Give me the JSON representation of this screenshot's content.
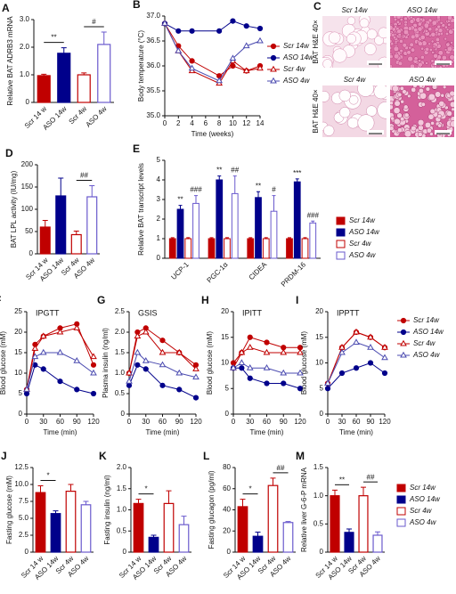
{
  "chart_data": [
    {
      "type": "bar",
      "panel": "A",
      "ylabel": "Relative BAT ADRB3 mRNA",
      "categories": [
        "Scr 14 w",
        "ASO 14w",
        "Scr 4w",
        "ASO 4w"
      ],
      "values": [
        0.97,
        1.78,
        1.0,
        2.1
      ],
      "errors": [
        0.05,
        0.2,
        0.07,
        0.45
      ],
      "colors": [
        "#c00000",
        "#00008b",
        "#c00000",
        "#6a5acd"
      ],
      "filled": [
        true,
        true,
        false,
        false
      ],
      "ylim": [
        0,
        3
      ],
      "yticks": [
        0,
        {
          "value": 1,
          "label": "1.0"
        },
        {
          "value": 2,
          "label": "2.0"
        },
        {
          "value": 3,
          "label": "3.0"
        }
      ],
      "annotations": [
        "**",
        "#"
      ]
    },
    {
      "type": "line",
      "panel": "B",
      "ylabel": "Body temperature (°C)",
      "xlabel": "Time (weeks)",
      "x": [
        0,
        2,
        4,
        8,
        10,
        12,
        14
      ],
      "xlim": [
        0,
        14
      ],
      "xticks": [
        0,
        2,
        4,
        6,
        8,
        10,
        12,
        14
      ],
      "ylim": [
        35,
        37
      ],
      "yticks": [
        {
          "value": 35,
          "label": "35.0"
        },
        35.5,
        {
          "value": 36,
          "label": "36.0"
        },
        36.5,
        {
          "value": 37,
          "label": "37.0"
        }
      ],
      "series": [
        {
          "name": "Scr 14w",
          "color": "#c00000",
          "marker": "circle",
          "filled": true,
          "values": [
            36.85,
            36.4,
            36.1,
            35.8,
            36.0,
            35.9,
            36.0
          ]
        },
        {
          "name": "ASO 14w",
          "color": "#00008b",
          "marker": "circle",
          "filled": true,
          "values": [
            36.85,
            36.7,
            36.7,
            36.7,
            36.9,
            36.8,
            36.75
          ]
        },
        {
          "name": "Scr 4w",
          "color": "#c00000",
          "marker": "triangle",
          "filled": false,
          "values": [
            36.85,
            36.3,
            35.9,
            35.65,
            36.1,
            35.9,
            35.95
          ]
        },
        {
          "name": "ASO 4w",
          "color": "#4b4bb0",
          "marker": "triangle",
          "filled": false,
          "values": [
            36.85,
            36.3,
            35.95,
            35.7,
            36.15,
            36.4,
            36.5
          ]
        }
      ]
    },
    {
      "type": "bar",
      "panel": "D",
      "ylabel": "BAT LPL activity (IU/mg)",
      "categories": [
        "Scr 14 w",
        "ASO 14w",
        "Scr 4w",
        "ASO 4w"
      ],
      "values": [
        60,
        130,
        43,
        128
      ],
      "errors": [
        15,
        40,
        8,
        25
      ],
      "colors": [
        "#c00000",
        "#00008b",
        "#c00000",
        "#6a5acd"
      ],
      "filled": [
        true,
        true,
        false,
        false
      ],
      "ylim": [
        0,
        200
      ],
      "yticks": [
        0,
        50,
        100,
        150,
        200
      ],
      "annotations": [
        null,
        "##"
      ]
    },
    {
      "type": "grouped-bar",
      "panel": "E",
      "ylabel": "Relative BAT transcript levels",
      "categories": [
        "UCP-1",
        "PGC-1α",
        "CIDEA",
        "PRDM-16"
      ],
      "ylim": [
        0,
        5
      ],
      "yticks": [
        0,
        1,
        2,
        3,
        4,
        5
      ],
      "series": [
        {
          "name": "Scr 14w",
          "color": "#c00000",
          "filled": true,
          "values": [
            1,
            1,
            1,
            1
          ],
          "errors": [
            0.05,
            0.05,
            0.05,
            0.05
          ]
        },
        {
          "name": "ASO 14w",
          "color": "#00008b",
          "filled": true,
          "values": [
            2.5,
            4.0,
            3.1,
            3.9
          ],
          "errors": [
            0.2,
            0.2,
            0.3,
            0.15
          ]
        },
        {
          "name": "Scr 4w",
          "color": "#c00000",
          "filled": false,
          "values": [
            1,
            1,
            1,
            1
          ],
          "errors": [
            0.05,
            0.05,
            0.05,
            0.05
          ]
        },
        {
          "name": "ASO 4w",
          "color": "#6a5acd",
          "filled": false,
          "values": [
            2.8,
            3.3,
            2.4,
            1.8
          ],
          "errors": [
            0.4,
            0.9,
            0.8,
            0.1
          ]
        }
      ],
      "annotations": [
        [
          "**",
          "###"
        ],
        [
          "**",
          "##"
        ],
        [
          "**",
          "#"
        ],
        [
          "***",
          "###"
        ]
      ]
    },
    {
      "type": "line",
      "panel": "F",
      "title": "IPGTT",
      "ylabel": "Blood glucose (mM)",
      "xlabel": "Time (min)",
      "x": [
        0,
        15,
        30,
        60,
        90,
        120
      ],
      "xlim": [
        0,
        120
      ],
      "xticks": [
        0,
        30,
        60,
        90,
        120
      ],
      "ylim": [
        0,
        25
      ],
      "yticks": [
        0,
        5,
        10,
        15,
        20,
        25
      ],
      "series": [
        {
          "name": "Scr 14w",
          "color": "#c00000",
          "marker": "circle",
          "filled": true,
          "values": [
            6,
            17,
            19,
            21,
            22,
            12
          ]
        },
        {
          "name": "ASO 14w",
          "color": "#00008b",
          "marker": "circle",
          "filled": true,
          "values": [
            5,
            12,
            11,
            8,
            6,
            5
          ]
        },
        {
          "name": "Scr 4w",
          "color": "#c00000",
          "marker": "triangle",
          "filled": false,
          "values": [
            6,
            16,
            19,
            20,
            21,
            14
          ]
        },
        {
          "name": "ASO 4w",
          "color": "#4b4bb0",
          "marker": "triangle",
          "filled": false,
          "values": [
            6,
            14,
            15,
            15,
            13,
            10
          ]
        }
      ]
    },
    {
      "type": "line",
      "panel": "G",
      "title": "GSIS",
      "ylabel": "Plasma insulin (ng/ml)",
      "xlabel": "Time (min)",
      "x": [
        0,
        15,
        30,
        60,
        90,
        120
      ],
      "xlim": [
        0,
        120
      ],
      "xticks": [
        0,
        30,
        60,
        90,
        120
      ],
      "ylim": [
        0,
        2.5
      ],
      "yticks": [
        0,
        0.5,
        {
          "value": 1,
          "label": "1.0"
        },
        1.5,
        {
          "value": 2,
          "label": "2.0"
        },
        2.5
      ],
      "series": [
        {
          "name": "Scr 14w",
          "color": "#c00000",
          "marker": "circle",
          "filled": true,
          "values": [
            1.0,
            2.0,
            2.1,
            1.8,
            1.5,
            1.2
          ]
        },
        {
          "name": "ASO 14w",
          "color": "#00008b",
          "marker": "circle",
          "filled": true,
          "values": [
            0.7,
            1.2,
            1.1,
            0.7,
            0.6,
            0.4
          ]
        },
        {
          "name": "Scr 4w",
          "color": "#c00000",
          "marker": "triangle",
          "filled": false,
          "values": [
            1.0,
            1.9,
            2.0,
            1.5,
            1.5,
            1.1
          ]
        },
        {
          "name": "ASO 4w",
          "color": "#4b4bb0",
          "marker": "triangle",
          "filled": false,
          "values": [
            0.8,
            1.5,
            1.3,
            1.2,
            1.0,
            0.9
          ]
        }
      ]
    },
    {
      "type": "line",
      "panel": "H",
      "title": "IPITT",
      "ylabel": "Blood glucose (mM)",
      "xlabel": "Time (min)",
      "x": [
        0,
        15,
        30,
        60,
        90,
        120
      ],
      "xlim": [
        0,
        120
      ],
      "xticks": [
        0,
        30,
        60,
        90,
        120
      ],
      "ylim": [
        0,
        20
      ],
      "yticks": [
        0,
        5,
        10,
        15,
        20
      ],
      "series": [
        {
          "name": "Scr 14w",
          "color": "#c00000",
          "marker": "circle",
          "filled": true,
          "values": [
            10,
            12,
            15,
            14,
            13,
            13
          ]
        },
        {
          "name": "ASO 14w",
          "color": "#00008b",
          "marker": "circle",
          "filled": true,
          "values": [
            9,
            9,
            7,
            6,
            6,
            5
          ]
        },
        {
          "name": "Scr 4w",
          "color": "#c00000",
          "marker": "triangle",
          "filled": false,
          "values": [
            9,
            12,
            13,
            12,
            12,
            12
          ]
        },
        {
          "name": "ASO 4w",
          "color": "#4b4bb0",
          "marker": "triangle",
          "filled": false,
          "values": [
            9,
            10,
            9,
            9,
            8,
            8
          ]
        }
      ]
    },
    {
      "type": "line",
      "panel": "I",
      "title": "IPPTT",
      "ylabel": "Blood glucose (mM)",
      "xlabel": "Time (min)",
      "x": [
        0,
        30,
        60,
        90,
        120
      ],
      "xlim": [
        0,
        120
      ],
      "xticks": [
        0,
        30,
        60,
        90,
        120
      ],
      "ylim": [
        0,
        20
      ],
      "yticks": [
        0,
        5,
        10,
        15,
        20
      ],
      "series": [
        {
          "name": "Scr 14w",
          "color": "#c00000",
          "marker": "circle",
          "filled": true,
          "values": [
            6,
            13,
            16,
            15,
            13
          ]
        },
        {
          "name": "ASO 14w",
          "color": "#00008b",
          "marker": "circle",
          "filled": true,
          "values": [
            5,
            8,
            9,
            10,
            8
          ]
        },
        {
          "name": "Scr 4w",
          "color": "#c00000",
          "marker": "triangle",
          "filled": false,
          "values": [
            6,
            13,
            16,
            15,
            13
          ]
        },
        {
          "name": "ASO 4w",
          "color": "#4b4bb0",
          "marker": "triangle",
          "filled": false,
          "values": [
            6,
            12,
            14,
            13,
            11
          ]
        }
      ]
    },
    {
      "type": "bar",
      "panel": "J",
      "ylabel": "Fasting glucose (mM)",
      "categories": [
        "Scr 14 w",
        "ASO 14w",
        "Scr 4w",
        "ASO 4w"
      ],
      "values": [
        8.8,
        5.7,
        9.0,
        7.0
      ],
      "errors": [
        1.0,
        0.4,
        1.0,
        0.5
      ],
      "colors": [
        "#c00000",
        "#00008b",
        "#c00000",
        "#6a5acd"
      ],
      "filled": [
        true,
        true,
        false,
        false
      ],
      "ylim": [
        0,
        12.5
      ],
      "yticks": [
        0,
        2.5,
        {
          "value": 5,
          "label": "5.0"
        },
        7.5,
        {
          "value": 10,
          "label": "10.0"
        },
        12.5
      ],
      "annotations": [
        "*",
        null
      ]
    },
    {
      "type": "bar",
      "panel": "K",
      "ylabel": "Fasting insulin (ng/ml)",
      "categories": [
        "Scr 14 w",
        "ASO 14w",
        "Scr 4w",
        "ASO 4w"
      ],
      "values": [
        1.15,
        0.35,
        1.15,
        0.65
      ],
      "errors": [
        0.1,
        0.05,
        0.3,
        0.2
      ],
      "colors": [
        "#c00000",
        "#00008b",
        "#c00000",
        "#6a5acd"
      ],
      "filled": [
        true,
        true,
        false,
        false
      ],
      "ylim": [
        0,
        2
      ],
      "yticks": [
        0,
        0.5,
        {
          "value": 1,
          "label": "1.0"
        },
        1.5,
        {
          "value": 2,
          "label": "2.0"
        }
      ],
      "annotations": [
        "*",
        null
      ]
    },
    {
      "type": "bar",
      "panel": "L",
      "ylabel": "Fasting glucagon (pg/ml)",
      "categories": [
        "Scr 14 w",
        "ASO 14w",
        "Scr 4w",
        "ASO 4w"
      ],
      "values": [
        43,
        15,
        63,
        28
      ],
      "errors": [
        7,
        4,
        7,
        1
      ],
      "colors": [
        "#c00000",
        "#00008b",
        "#c00000",
        "#6a5acd"
      ],
      "filled": [
        true,
        true,
        false,
        false
      ],
      "ylim": [
        0,
        80
      ],
      "yticks": [
        0,
        20,
        40,
        60,
        80
      ],
      "annotations": [
        "*",
        "##"
      ]
    },
    {
      "type": "bar",
      "panel": "M",
      "ylabel": "Relative liver G-6-P mRNA",
      "categories": [
        "Scr 14 w",
        "ASO 14w",
        "Scr 4w",
        "ASO 4w"
      ],
      "values": [
        1.0,
        0.35,
        1.0,
        0.3
      ],
      "errors": [
        0.1,
        0.06,
        0.15,
        0.06
      ],
      "colors": [
        "#c00000",
        "#00008b",
        "#c00000",
        "#6a5acd"
      ],
      "filled": [
        true,
        true,
        false,
        false
      ],
      "ylim": [
        0,
        1.5
      ],
      "yticks": [
        0,
        0.5,
        {
          "value": 1,
          "label": "1.0"
        },
        1.5
      ],
      "annotations": [
        "**",
        "##"
      ],
      "legend": [
        "Scr 14w",
        "ASO 14w",
        "Scr 4w",
        "ASO 4w"
      ]
    }
  ],
  "histology": {
    "panel": "C",
    "images": [
      "Scr 14w",
      "ASO 14w",
      "Scr 4w",
      "ASO 4w"
    ],
    "row_labels": [
      "BAT H&E 40×",
      "BAT H&E 40×"
    ]
  }
}
